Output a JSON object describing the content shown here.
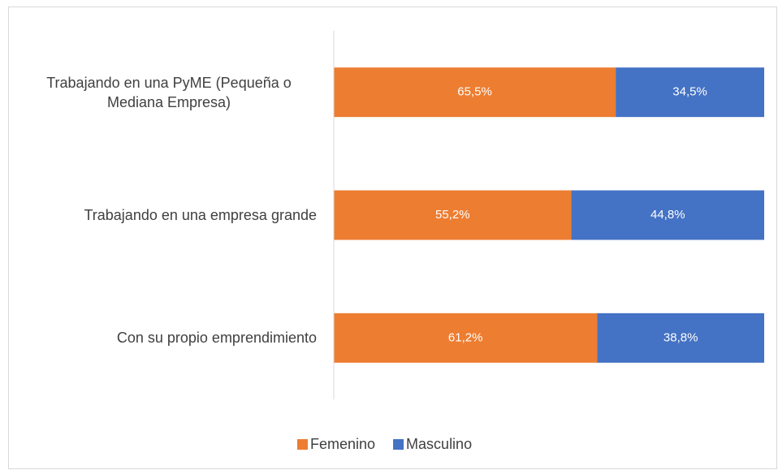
{
  "chart_data": {
    "type": "stacked-bar-horizontal",
    "categories": [
      "Trabajando en una PyME (Pequeña o Mediana Empresa)",
      "Trabajando en una empresa grande",
      "Con su propio emprendimiento"
    ],
    "series": [
      {
        "name": "Femenino",
        "color": "#ed7d31",
        "values": [
          65.5,
          55.2,
          61.2
        ],
        "value_labels": [
          "65,5%",
          "55,2%",
          "61,2%"
        ]
      },
      {
        "name": "Masculino",
        "color": "#4472c4",
        "values": [
          34.5,
          44.8,
          38.8
        ],
        "value_labels": [
          "34,5%",
          "44,8%",
          "38,8%"
        ]
      }
    ],
    "xlim": [
      0,
      100
    ],
    "legend": "bottom"
  }
}
